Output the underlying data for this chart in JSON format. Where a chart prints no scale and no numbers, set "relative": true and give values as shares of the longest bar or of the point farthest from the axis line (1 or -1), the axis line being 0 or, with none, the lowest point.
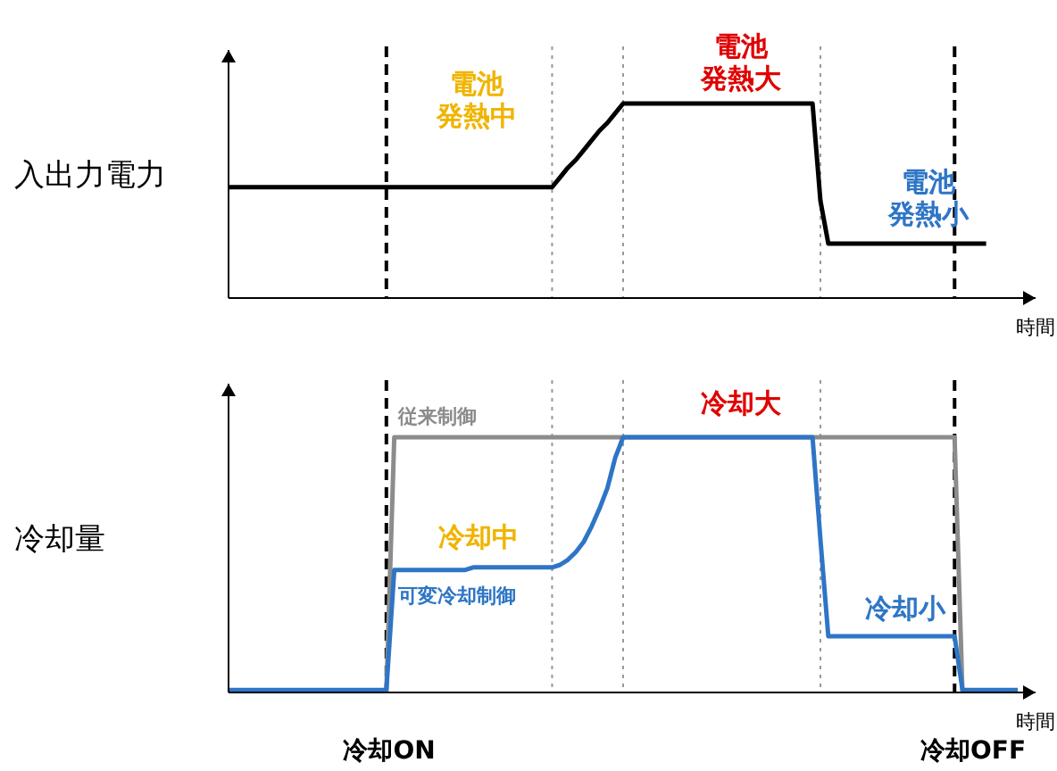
{
  "chart_data": [
    {
      "type": "line",
      "relative": true,
      "ylabel": "入出力電力",
      "xlabel": "時間",
      "line_style": "solid",
      "grid": "x",
      "categories": [
        null,
        null,
        null,
        null,
        null,
        null,
        null,
        null,
        null,
        null,
        null,
        null,
        null,
        null,
        null,
        null,
        null,
        null,
        null,
        null,
        null,
        null,
        null,
        null,
        null,
        null,
        null,
        null,
        null,
        null,
        null,
        null,
        null,
        null,
        null,
        null,
        null,
        null,
        null,
        null,
        null,
        null,
        null,
        null,
        null,
        null,
        null,
        null,
        null,
        null,
        null,
        null,
        null,
        null,
        null,
        null,
        null,
        null,
        null,
        null,
        null,
        null,
        null,
        null,
        null,
        null,
        null,
        null,
        null,
        null,
        null,
        null,
        null,
        null,
        null,
        null,
        null,
        null,
        null,
        null,
        null,
        null,
        null,
        null,
        null,
        null,
        null,
        null,
        null,
        null,
        null,
        null,
        null,
        null,
        null,
        null,
        null,
        null,
        null,
        null,
        null
      ],
      "series": [
        {
          "color": "#000000",
          "values": [
            0.57,
            0.57,
            0.57,
            0.57,
            0.57,
            0.57,
            0.57,
            0.57,
            0.57,
            0.57,
            0.57,
            0.57,
            0.57,
            0.57,
            0.57,
            0.57,
            0.57,
            0.57,
            0.57,
            0.57,
            0.57,
            0.57,
            0.57,
            0.57,
            0.57,
            0.57,
            0.57,
            0.57,
            0.57,
            0.57,
            0.57,
            0.57,
            0.57,
            0.57,
            0.57,
            0.57,
            0.57,
            0.57,
            0.57,
            0.57,
            0.57,
            0.57,
            0.62,
            0.67,
            0.71,
            0.76,
            0.81,
            0.86,
            0.9,
            0.95,
            1,
            1,
            1,
            1,
            1,
            1,
            1,
            1,
            1,
            1,
            1,
            1,
            1,
            1,
            1,
            1,
            1,
            1,
            1,
            1,
            1,
            1,
            1,
            1,
            1,
            0.5,
            0.28,
            0.28,
            0.28,
            0.28,
            0.28,
            0.28,
            0.28,
            0.28,
            0.28,
            0.28,
            0.28,
            0.28,
            0.28,
            0.28,
            0.28,
            0.28,
            0.28,
            0.28,
            0.28,
            0.28,
            0.28,
            null,
            null,
            null,
            null
          ]
        }
      ],
      "annotations": [
        "電池発熱中",
        "電池発熱大",
        "電池発熱小"
      ]
    },
    {
      "type": "line",
      "relative": true,
      "ylabel": "冷却量",
      "xlabel": "時間",
      "line_style": "solid",
      "grid": "x",
      "categories": [
        null,
        null,
        null,
        null,
        null,
        null,
        null,
        null,
        null,
        null,
        null,
        null,
        null,
        null,
        null,
        null,
        null,
        null,
        null,
        null,
        null,
        null,
        null,
        null,
        null,
        null,
        null,
        null,
        null,
        null,
        null,
        null,
        null,
        null,
        null,
        null,
        null,
        null,
        null,
        null,
        null,
        null,
        null,
        null,
        null,
        null,
        null,
        null,
        null,
        null,
        null,
        null,
        null,
        null,
        null,
        null,
        null,
        null,
        null,
        null,
        null,
        null,
        null,
        null,
        null,
        null,
        null,
        null,
        null,
        null,
        null,
        null,
        null,
        null,
        null,
        null,
        null,
        null,
        null,
        null,
        null,
        null,
        null,
        null,
        null,
        null,
        null,
        null,
        null,
        null,
        null,
        null,
        null,
        null,
        null,
        null,
        null,
        null,
        null,
        null,
        null
      ],
      "series": [
        {
          "name": "従来制御",
          "color": "#8c8c8c",
          "values": [
            null,
            null,
            null,
            null,
            null,
            null,
            null,
            null,
            null,
            null,
            null,
            null,
            null,
            null,
            null,
            null,
            null,
            null,
            null,
            null,
            0,
            1,
            1,
            1,
            1,
            1,
            1,
            1,
            1,
            1,
            1,
            1,
            1,
            1,
            1,
            1,
            1,
            1,
            1,
            1,
            1,
            1,
            1,
            1,
            1,
            1,
            1,
            1,
            1,
            1,
            1,
            1,
            1,
            1,
            1,
            1,
            1,
            1,
            1,
            1,
            1,
            1,
            1,
            1,
            1,
            1,
            1,
            1,
            1,
            1,
            1,
            1,
            1,
            1,
            1,
            1,
            1,
            1,
            1,
            1,
            1,
            1,
            1,
            1,
            1,
            1,
            1,
            1,
            1,
            1,
            1,
            1,
            1,
            0,
            null,
            null,
            null,
            null,
            null,
            null,
            null
          ]
        },
        {
          "name": "可変冷却制御",
          "color": "#2e75c6",
          "values": [
            0.01,
            0.01,
            0.01,
            0.01,
            0.01,
            0.01,
            0.01,
            0.01,
            0.01,
            0.01,
            0.01,
            0.01,
            0.01,
            0.01,
            0.01,
            0.01,
            0.01,
            0.01,
            0.01,
            0.01,
            0.01,
            0.48,
            0.48,
            0.48,
            0.48,
            0.48,
            0.48,
            0.48,
            0.48,
            0.48,
            0.48,
            0.49,
            0.49,
            0.49,
            0.49,
            0.49,
            0.49,
            0.49,
            0.49,
            0.49,
            0.49,
            0.49,
            0.5,
            0.52,
            0.55,
            0.59,
            0.65,
            0.72,
            0.8,
            0.92,
            1,
            1,
            1,
            1,
            1,
            1,
            1,
            1,
            1,
            1,
            1,
            1,
            1,
            1,
            1,
            1,
            1,
            1,
            1,
            1,
            1,
            1,
            1,
            1,
            1,
            0.6,
            0.22,
            0.22,
            0.22,
            0.22,
            0.22,
            0.22,
            0.22,
            0.22,
            0.22,
            0.22,
            0.22,
            0.22,
            0.22,
            0.22,
            0.22,
            0.22,
            0.22,
            0.01,
            0.01,
            0.01,
            0.01,
            0.01,
            0.01,
            0.01,
            0.01
          ]
        }
      ],
      "annotations": [
        "冷却大",
        "冷却中",
        "冷却小",
        "冷却ON",
        "冷却OFF"
      ]
    }
  ]
}
